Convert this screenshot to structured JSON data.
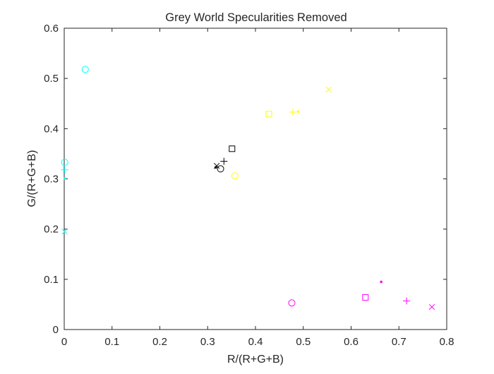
{
  "chart_data": {
    "type": "scatter",
    "title": "Grey World Specularities Removed",
    "xlabel": "R/(R+G+B)",
    "ylabel": "G/(R+G+B)",
    "xlim": [
      0,
      0.8
    ],
    "ylim": [
      0,
      0.6
    ],
    "xticks": [
      0,
      0.1,
      0.2,
      0.3,
      0.4,
      0.5,
      0.6,
      0.7,
      0.8
    ],
    "yticks": [
      0,
      0.1,
      0.2,
      0.3,
      0.4,
      0.5,
      0.6
    ],
    "xtick_labels": [
      "0",
      "0.1",
      "0.2",
      "0.3",
      "0.4",
      "0.5",
      "0.6",
      "0.7",
      "0.8"
    ],
    "ytick_labels": [
      "0",
      "0.1",
      "0.2",
      "0.3",
      "0.4",
      "0.5",
      "0.6"
    ],
    "grid": false,
    "legend": "none",
    "colors": {
      "cyan": "#00ffff",
      "yellow": "#ffff00",
      "black": "#000000",
      "magenta": "#ff00ff"
    },
    "points": [
      {
        "x": 0.044,
        "y": 0.518,
        "marker": "circle",
        "color": "cyan"
      },
      {
        "x": 0.001,
        "y": 0.333,
        "marker": "circle",
        "color": "cyan"
      },
      {
        "x": 0.001,
        "y": 0.318,
        "marker": "plus",
        "color": "cyan"
      },
      {
        "x": 0.001,
        "y": 0.301,
        "marker": "dot",
        "color": "cyan"
      },
      {
        "x": 0.001,
        "y": 0.195,
        "marker": "x",
        "color": "cyan"
      },
      {
        "x": 0.553,
        "y": 0.478,
        "marker": "x",
        "color": "yellow"
      },
      {
        "x": 0.478,
        "y": 0.433,
        "marker": "plus",
        "color": "yellow"
      },
      {
        "x": 0.489,
        "y": 0.434,
        "marker": "dot",
        "color": "yellow"
      },
      {
        "x": 0.428,
        "y": 0.429,
        "marker": "square",
        "color": "yellow"
      },
      {
        "x": 0.357,
        "y": 0.306,
        "marker": "circle",
        "color": "yellow"
      },
      {
        "x": 0.351,
        "y": 0.36,
        "marker": "square",
        "color": "black"
      },
      {
        "x": 0.334,
        "y": 0.335,
        "marker": "plus",
        "color": "black"
      },
      {
        "x": 0.319,
        "y": 0.326,
        "marker": "x",
        "color": "black"
      },
      {
        "x": 0.317,
        "y": 0.323,
        "marker": "dot",
        "color": "black"
      },
      {
        "x": 0.327,
        "y": 0.32,
        "marker": "circle",
        "color": "black"
      },
      {
        "x": 0.476,
        "y": 0.053,
        "marker": "circle",
        "color": "magenta"
      },
      {
        "x": 0.63,
        "y": 0.064,
        "marker": "square",
        "color": "magenta"
      },
      {
        "x": 0.663,
        "y": 0.095,
        "marker": "dot",
        "color": "magenta"
      },
      {
        "x": 0.716,
        "y": 0.057,
        "marker": "plus",
        "color": "magenta"
      },
      {
        "x": 0.769,
        "y": 0.045,
        "marker": "x",
        "color": "magenta"
      }
    ]
  }
}
